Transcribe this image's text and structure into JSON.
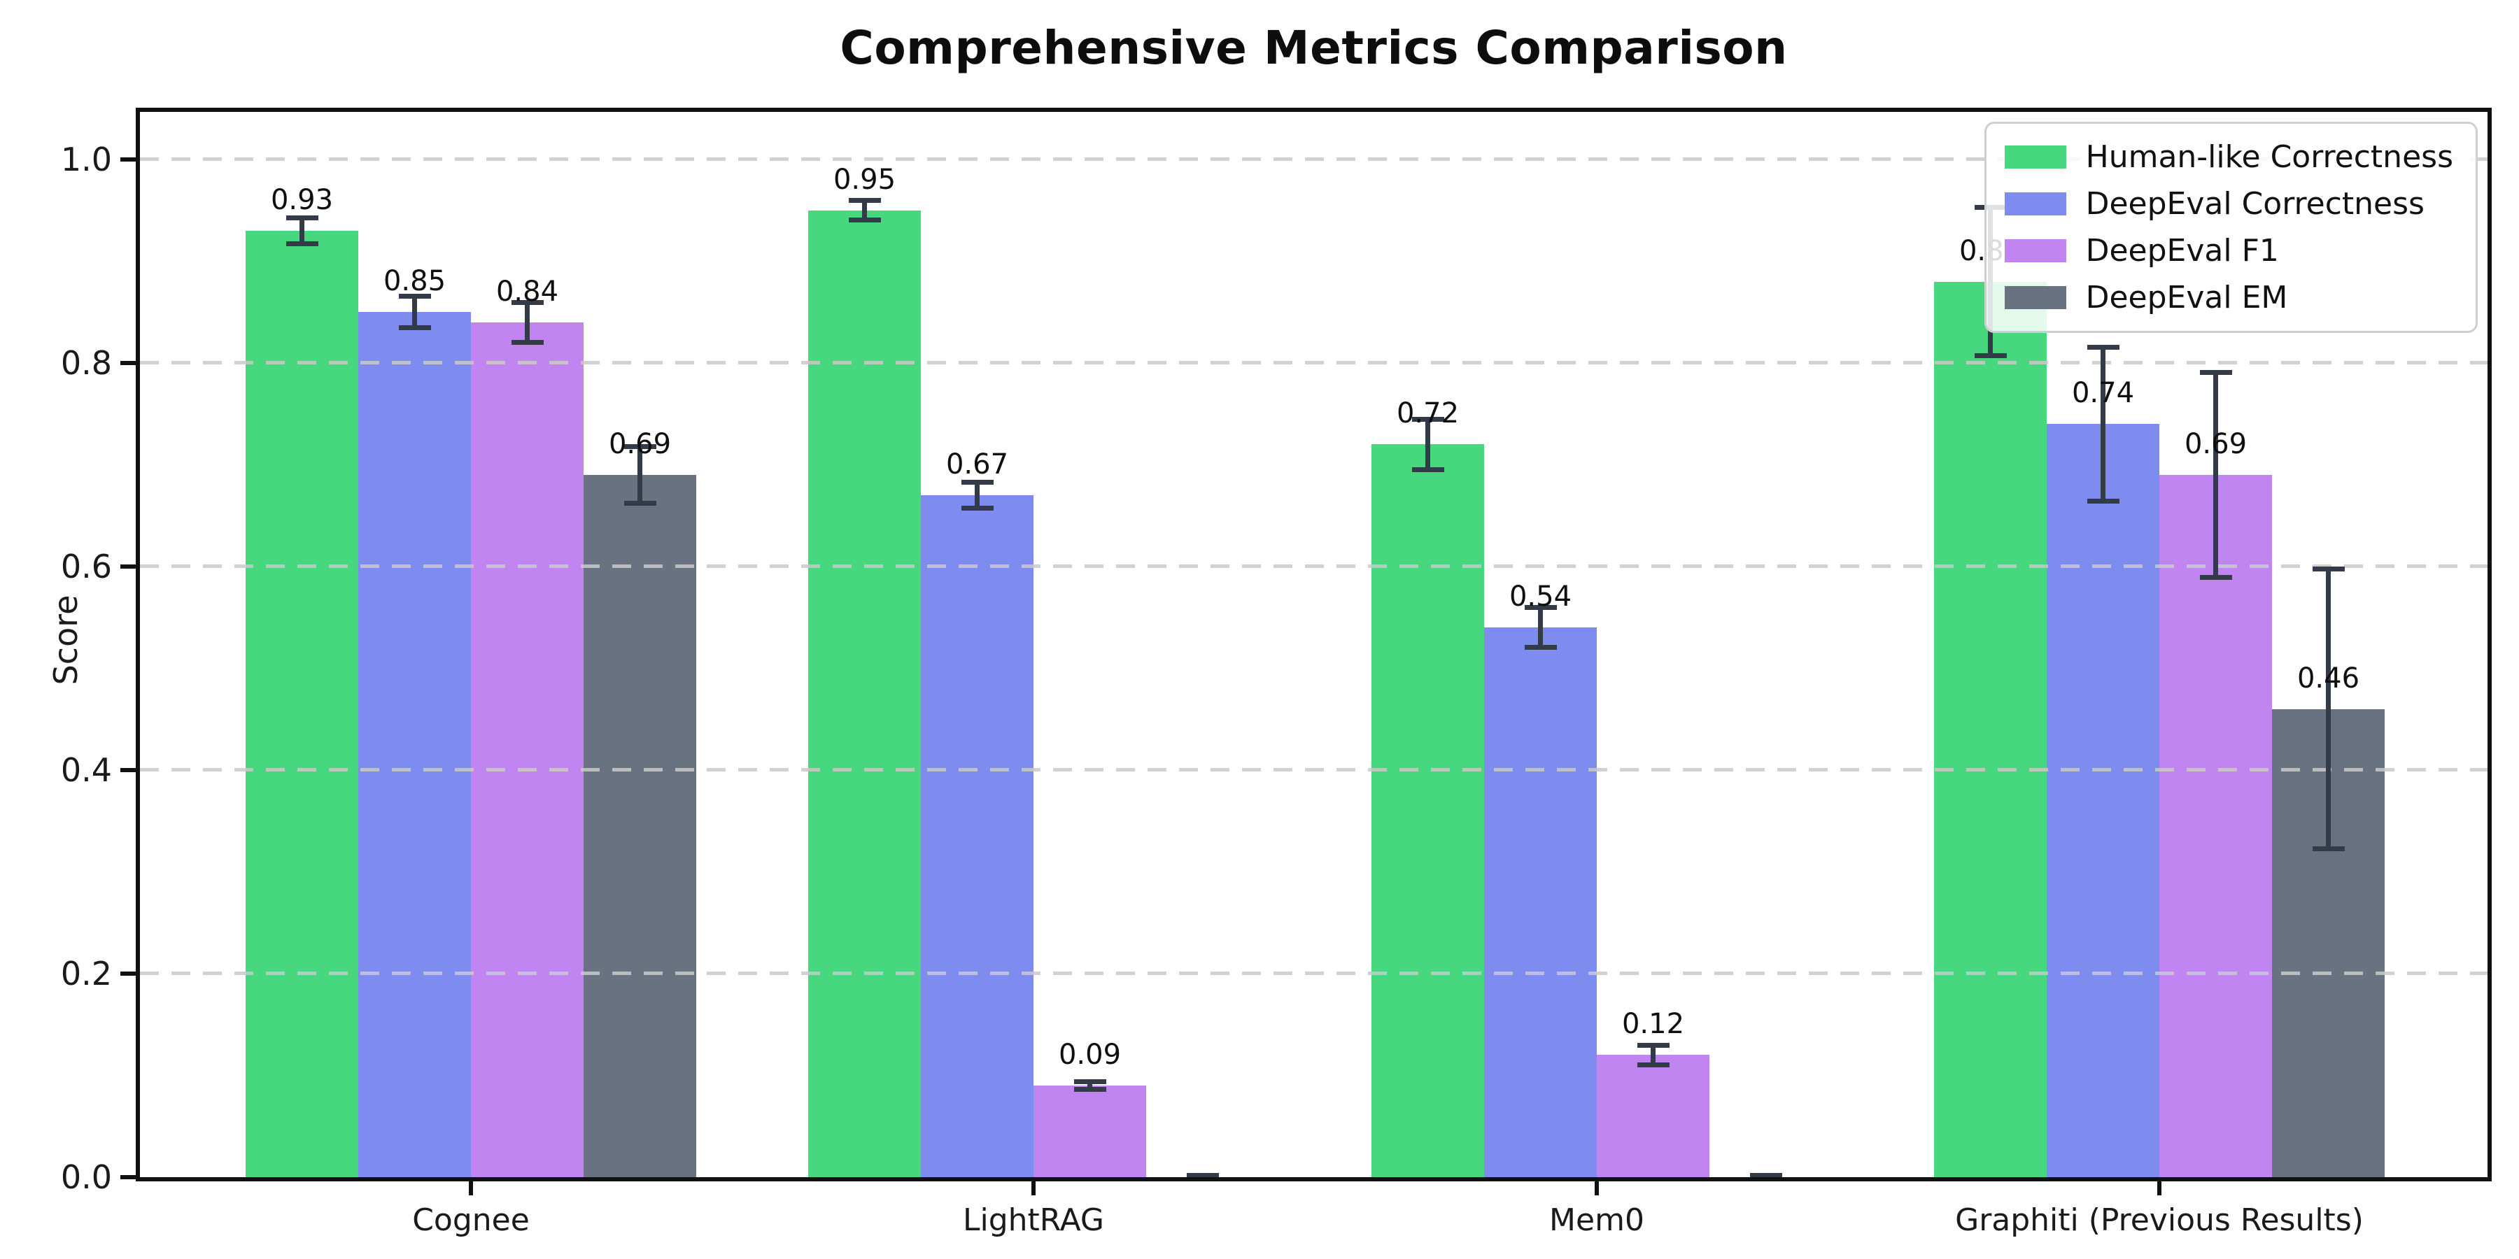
{
  "chart_data": {
    "type": "bar",
    "title": "Comprehensive Metrics Comparison",
    "ylabel": "Score",
    "xlabel": "",
    "categories": [
      "Cognee",
      "LightRAG",
      "Mem0",
      "Graphiti (Previous Results)"
    ],
    "series": [
      {
        "name": "Human-like Correctness",
        "color": "#47d87f",
        "values": [
          0.93,
          0.95,
          0.72,
          0.88
        ],
        "errors": [
          0.015,
          0.012,
          0.027,
          0.075
        ],
        "bar_labels": [
          "0.93",
          "0.95",
          "0.72",
          "0.88"
        ]
      },
      {
        "name": "DeepEval Correctness",
        "color": "#7e8cf0",
        "values": [
          0.85,
          0.67,
          0.54,
          0.74
        ],
        "errors": [
          0.018,
          0.015,
          0.022,
          0.078
        ],
        "bar_labels": [
          "0.85",
          "0.67",
          "0.54",
          "0.74"
        ]
      },
      {
        "name": "DeepEval F1",
        "color": "#c185f2",
        "values": [
          0.84,
          0.09,
          0.12,
          0.69
        ],
        "errors": [
          0.022,
          0.006,
          0.012,
          0.103
        ],
        "bar_labels": [
          "0.84",
          "0.09",
          "0.12",
          "0.69"
        ]
      },
      {
        "name": "DeepEval EM",
        "color": "#687280",
        "values": [
          0.69,
          0.0,
          0.0,
          0.46
        ],
        "errors": [
          0.03,
          0.004,
          0.004,
          0.14
        ],
        "bar_labels": [
          "0.69",
          null,
          null,
          "0.46"
        ]
      }
    ],
    "ytick_labels": [
      "0.0",
      "0.2",
      "0.4",
      "0.6",
      "0.8",
      "1.0"
    ],
    "yticks": [
      0.0,
      0.2,
      0.4,
      0.6,
      0.8,
      1.0
    ],
    "ylim": [
      0,
      1.047
    ],
    "grid": {
      "axis": "y",
      "style": "dashed",
      "color": "#c9c9c9"
    },
    "legend": {
      "position": "upper right"
    },
    "error_bar_color": "#333a48"
  }
}
